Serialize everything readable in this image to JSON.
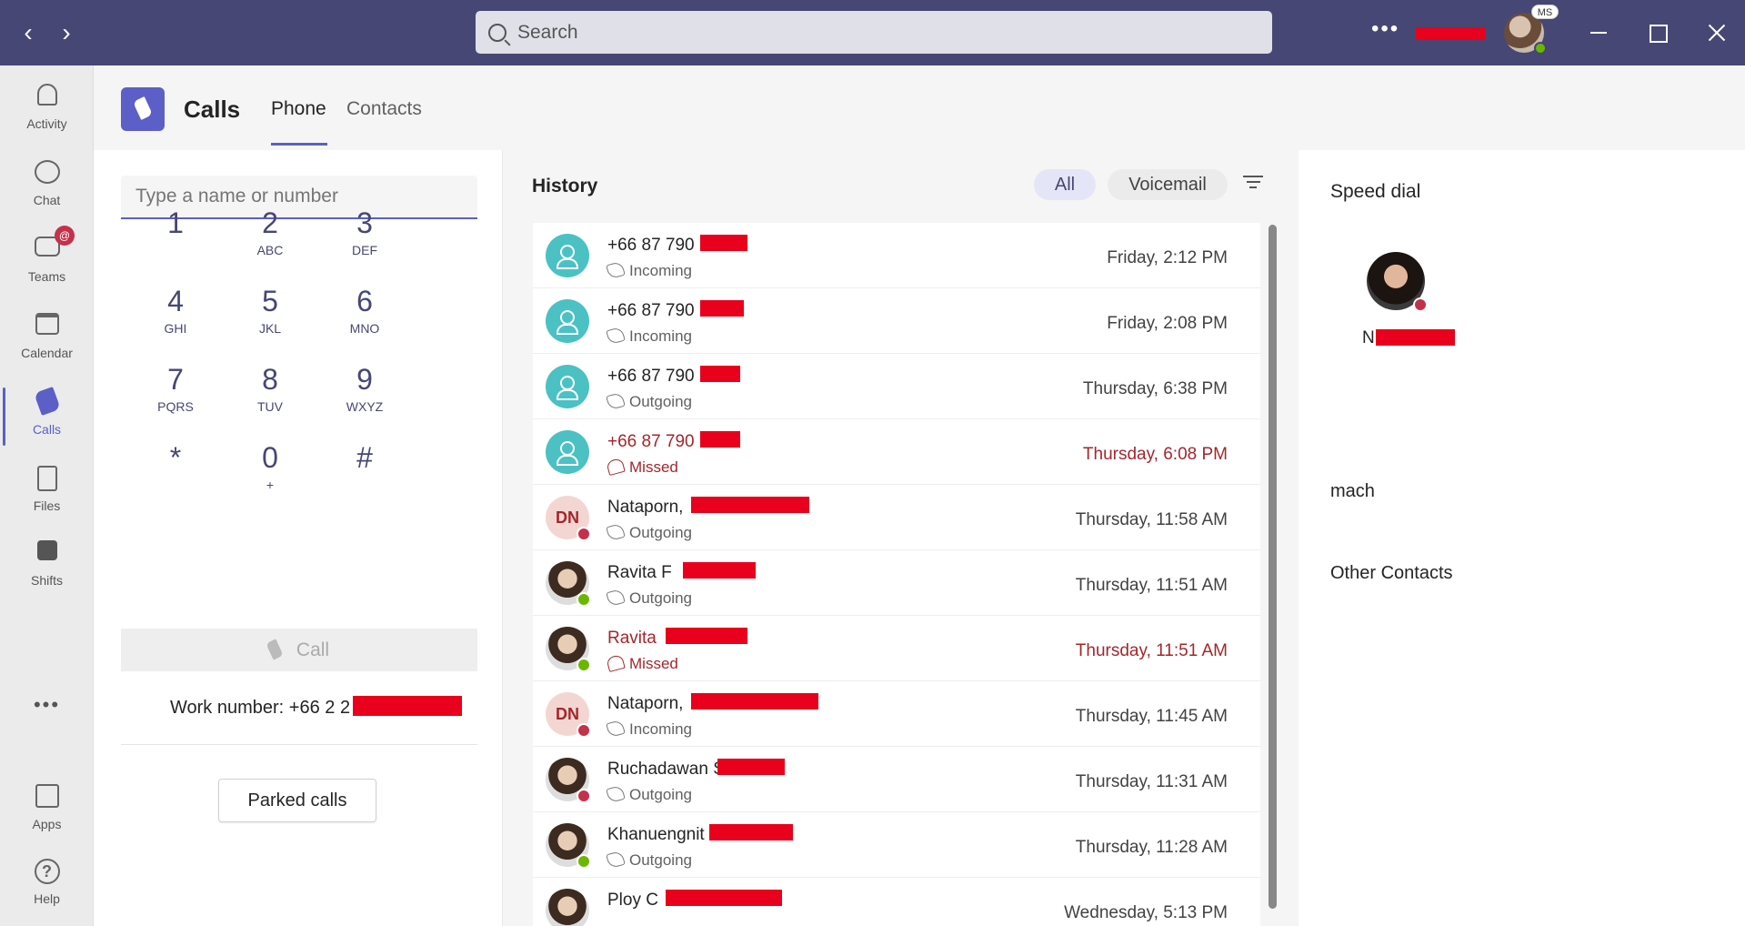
{
  "titlebar": {
    "back_icon": "chevron-left-icon",
    "forward_icon": "chevron-right-icon",
    "search_placeholder": "Search",
    "more_label": "•••",
    "profile_badge": "MS"
  },
  "rail": {
    "items": [
      {
        "label": "Activity",
        "icon": "bell-icon"
      },
      {
        "label": "Chat",
        "icon": "chat-icon"
      },
      {
        "label": "Teams",
        "icon": "teams-icon",
        "badge": "@"
      },
      {
        "label": "Calendar",
        "icon": "calendar-icon"
      },
      {
        "label": "Calls",
        "icon": "phone-icon",
        "active": true
      },
      {
        "label": "Files",
        "icon": "file-icon"
      },
      {
        "label": "Shifts",
        "icon": "shifts-icon"
      }
    ],
    "more": "•••",
    "apps": "Apps",
    "help": "Help",
    "help_glyph": "?"
  },
  "header": {
    "title": "Calls",
    "tabs": [
      {
        "label": "Phone",
        "active": true
      },
      {
        "label": "Contacts"
      }
    ]
  },
  "dialpad": {
    "input_placeholder": "Type a name or number",
    "keys": [
      {
        "num": "1",
        "letters": ""
      },
      {
        "num": "2",
        "letters": "ABC"
      },
      {
        "num": "3",
        "letters": "DEF"
      },
      {
        "num": "4",
        "letters": "GHI"
      },
      {
        "num": "5",
        "letters": "JKL"
      },
      {
        "num": "6",
        "letters": "MNO"
      },
      {
        "num": "7",
        "letters": "PQRS"
      },
      {
        "num": "8",
        "letters": "TUV"
      },
      {
        "num": "9",
        "letters": "WXYZ"
      },
      {
        "num": "*",
        "letters": ""
      },
      {
        "num": "0",
        "letters": "+"
      },
      {
        "num": "#",
        "letters": ""
      }
    ],
    "call_label": "Call",
    "work_number": "Work number: +66 2 2",
    "parked_label": "Parked calls"
  },
  "history": {
    "title": "History",
    "filter_all": "All",
    "filter_voicemail": "Voicemail",
    "rows": [
      {
        "name": "+66 87 790",
        "type": "Incoming",
        "time": "Friday, 2:12 PM",
        "avatar": "teal",
        "missed": false
      },
      {
        "name": "+66 87 790",
        "type": "Incoming",
        "time": "Friday, 2:08 PM",
        "avatar": "teal",
        "missed": false
      },
      {
        "name": "+66 87 790",
        "type": "Outgoing",
        "time": "Thursday, 6:38 PM",
        "avatar": "teal",
        "missed": false
      },
      {
        "name": "+66 87 790",
        "type": "Missed",
        "time": "Thursday, 6:08 PM",
        "avatar": "teal",
        "missed": true
      },
      {
        "name": "Nataporn,",
        "type": "Outgoing",
        "time": "Thursday, 11:58 AM",
        "avatar": "init",
        "initials": "DN",
        "status": "busy",
        "missed": false
      },
      {
        "name": "Ravita F",
        "type": "Outgoing",
        "time": "Thursday, 11:51 AM",
        "avatar": "photo",
        "status": "avail",
        "missed": false
      },
      {
        "name": "Ravita",
        "type": "Missed",
        "time": "Thursday, 11:51 AM",
        "avatar": "photo",
        "status": "avail",
        "missed": true
      },
      {
        "name": "Nataporn,",
        "type": "Incoming",
        "time": "Thursday, 11:45 AM",
        "avatar": "init",
        "initials": "DN",
        "status": "busy",
        "missed": false
      },
      {
        "name": "Ruchadawan S",
        "type": "Outgoing",
        "time": "Thursday, 11:31 AM",
        "avatar": "photo",
        "status": "busy",
        "missed": false
      },
      {
        "name": "Khanuengnit",
        "type": "Outgoing",
        "time": "Thursday, 11:28 AM",
        "avatar": "photo",
        "status": "avail",
        "missed": false
      },
      {
        "name": "Ploy C",
        "type": "",
        "time": "Wednesday, 5:13 PM",
        "avatar": "photo",
        "missed": false
      }
    ]
  },
  "speed_dial": {
    "title": "Speed dial",
    "contact_initial": "N",
    "groups": [
      "mach",
      "Other Contacts"
    ]
  },
  "colors": {
    "brand": "#464775",
    "accent": "#5b5fc7",
    "missed": "#a4262c",
    "redaction": "#e8001c"
  }
}
